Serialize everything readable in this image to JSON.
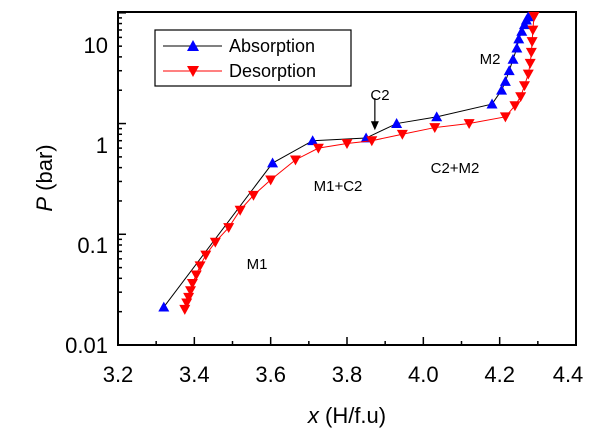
{
  "chart_data": {
    "type": "line",
    "xlabel_var": "x",
    "xlabel_rest": " (H/f.u)",
    "ylabel_var": "P",
    "ylabel_rest": " (bar)",
    "xlim": [
      3.2,
      4.4
    ],
    "ylim": [
      0.01,
      15
    ],
    "yscale": "log",
    "x_ticks": [
      "3.2",
      "3.4",
      "3.6",
      "3.8",
      "4.0",
      "4.2",
      "4.4"
    ],
    "y_ticks": [
      "0.01",
      "0.1",
      "1",
      "10"
    ],
    "legend_position": "top-left",
    "series": [
      {
        "name": "Absorption",
        "color": "#0000ff",
        "line_color": "#000000",
        "marker": "triangle-up",
        "x": [
          3.32,
          3.605,
          3.71,
          3.85,
          3.93,
          4.035,
          4.18,
          4.205,
          4.215,
          4.225,
          4.235,
          4.245,
          4.25,
          4.258,
          4.265,
          4.27,
          4.275
        ],
        "y": [
          0.022,
          0.44,
          0.7,
          0.74,
          1.0,
          1.15,
          1.5,
          2.0,
          2.4,
          3.0,
          3.8,
          4.8,
          5.8,
          6.8,
          7.8,
          8.6,
          9.2
        ]
      },
      {
        "name": "Desorption",
        "color": "#ff0000",
        "line_color": "#ff0000",
        "marker": "triangle-down",
        "x": [
          3.375,
          3.38,
          3.385,
          3.39,
          3.395,
          3.405,
          3.415,
          3.43,
          3.455,
          3.49,
          3.52,
          3.555,
          3.6,
          3.665,
          3.725,
          3.8,
          3.865,
          3.945,
          4.03,
          4.12,
          4.215,
          4.24,
          4.255,
          4.265,
          4.275,
          4.28,
          4.283,
          4.285,
          4.287,
          4.29
        ],
        "y": [
          0.021,
          0.024,
          0.027,
          0.031,
          0.036,
          0.043,
          0.052,
          0.065,
          0.085,
          0.115,
          0.165,
          0.225,
          0.31,
          0.47,
          0.6,
          0.66,
          0.7,
          0.8,
          0.92,
          1.0,
          1.15,
          1.45,
          1.75,
          2.2,
          2.8,
          3.5,
          4.4,
          5.5,
          7.0,
          9.3
        ]
      }
    ],
    "annotations": [
      {
        "text": "M1",
        "x": 3.49,
        "y": 0.042
      },
      {
        "text": "M1+C2",
        "x": 3.755,
        "y": 0.38
      },
      {
        "text": "C2",
        "x": 3.865,
        "y": 2.55
      },
      {
        "text": "C2+M2",
        "x": 4.135,
        "y": 0.58
      },
      {
        "text": "M2",
        "x": 4.195,
        "y": 8.1
      }
    ],
    "arrow": {
      "from_x": 3.873,
      "from_y": 1.7,
      "to_x": 3.873,
      "to_y": 0.87
    }
  }
}
